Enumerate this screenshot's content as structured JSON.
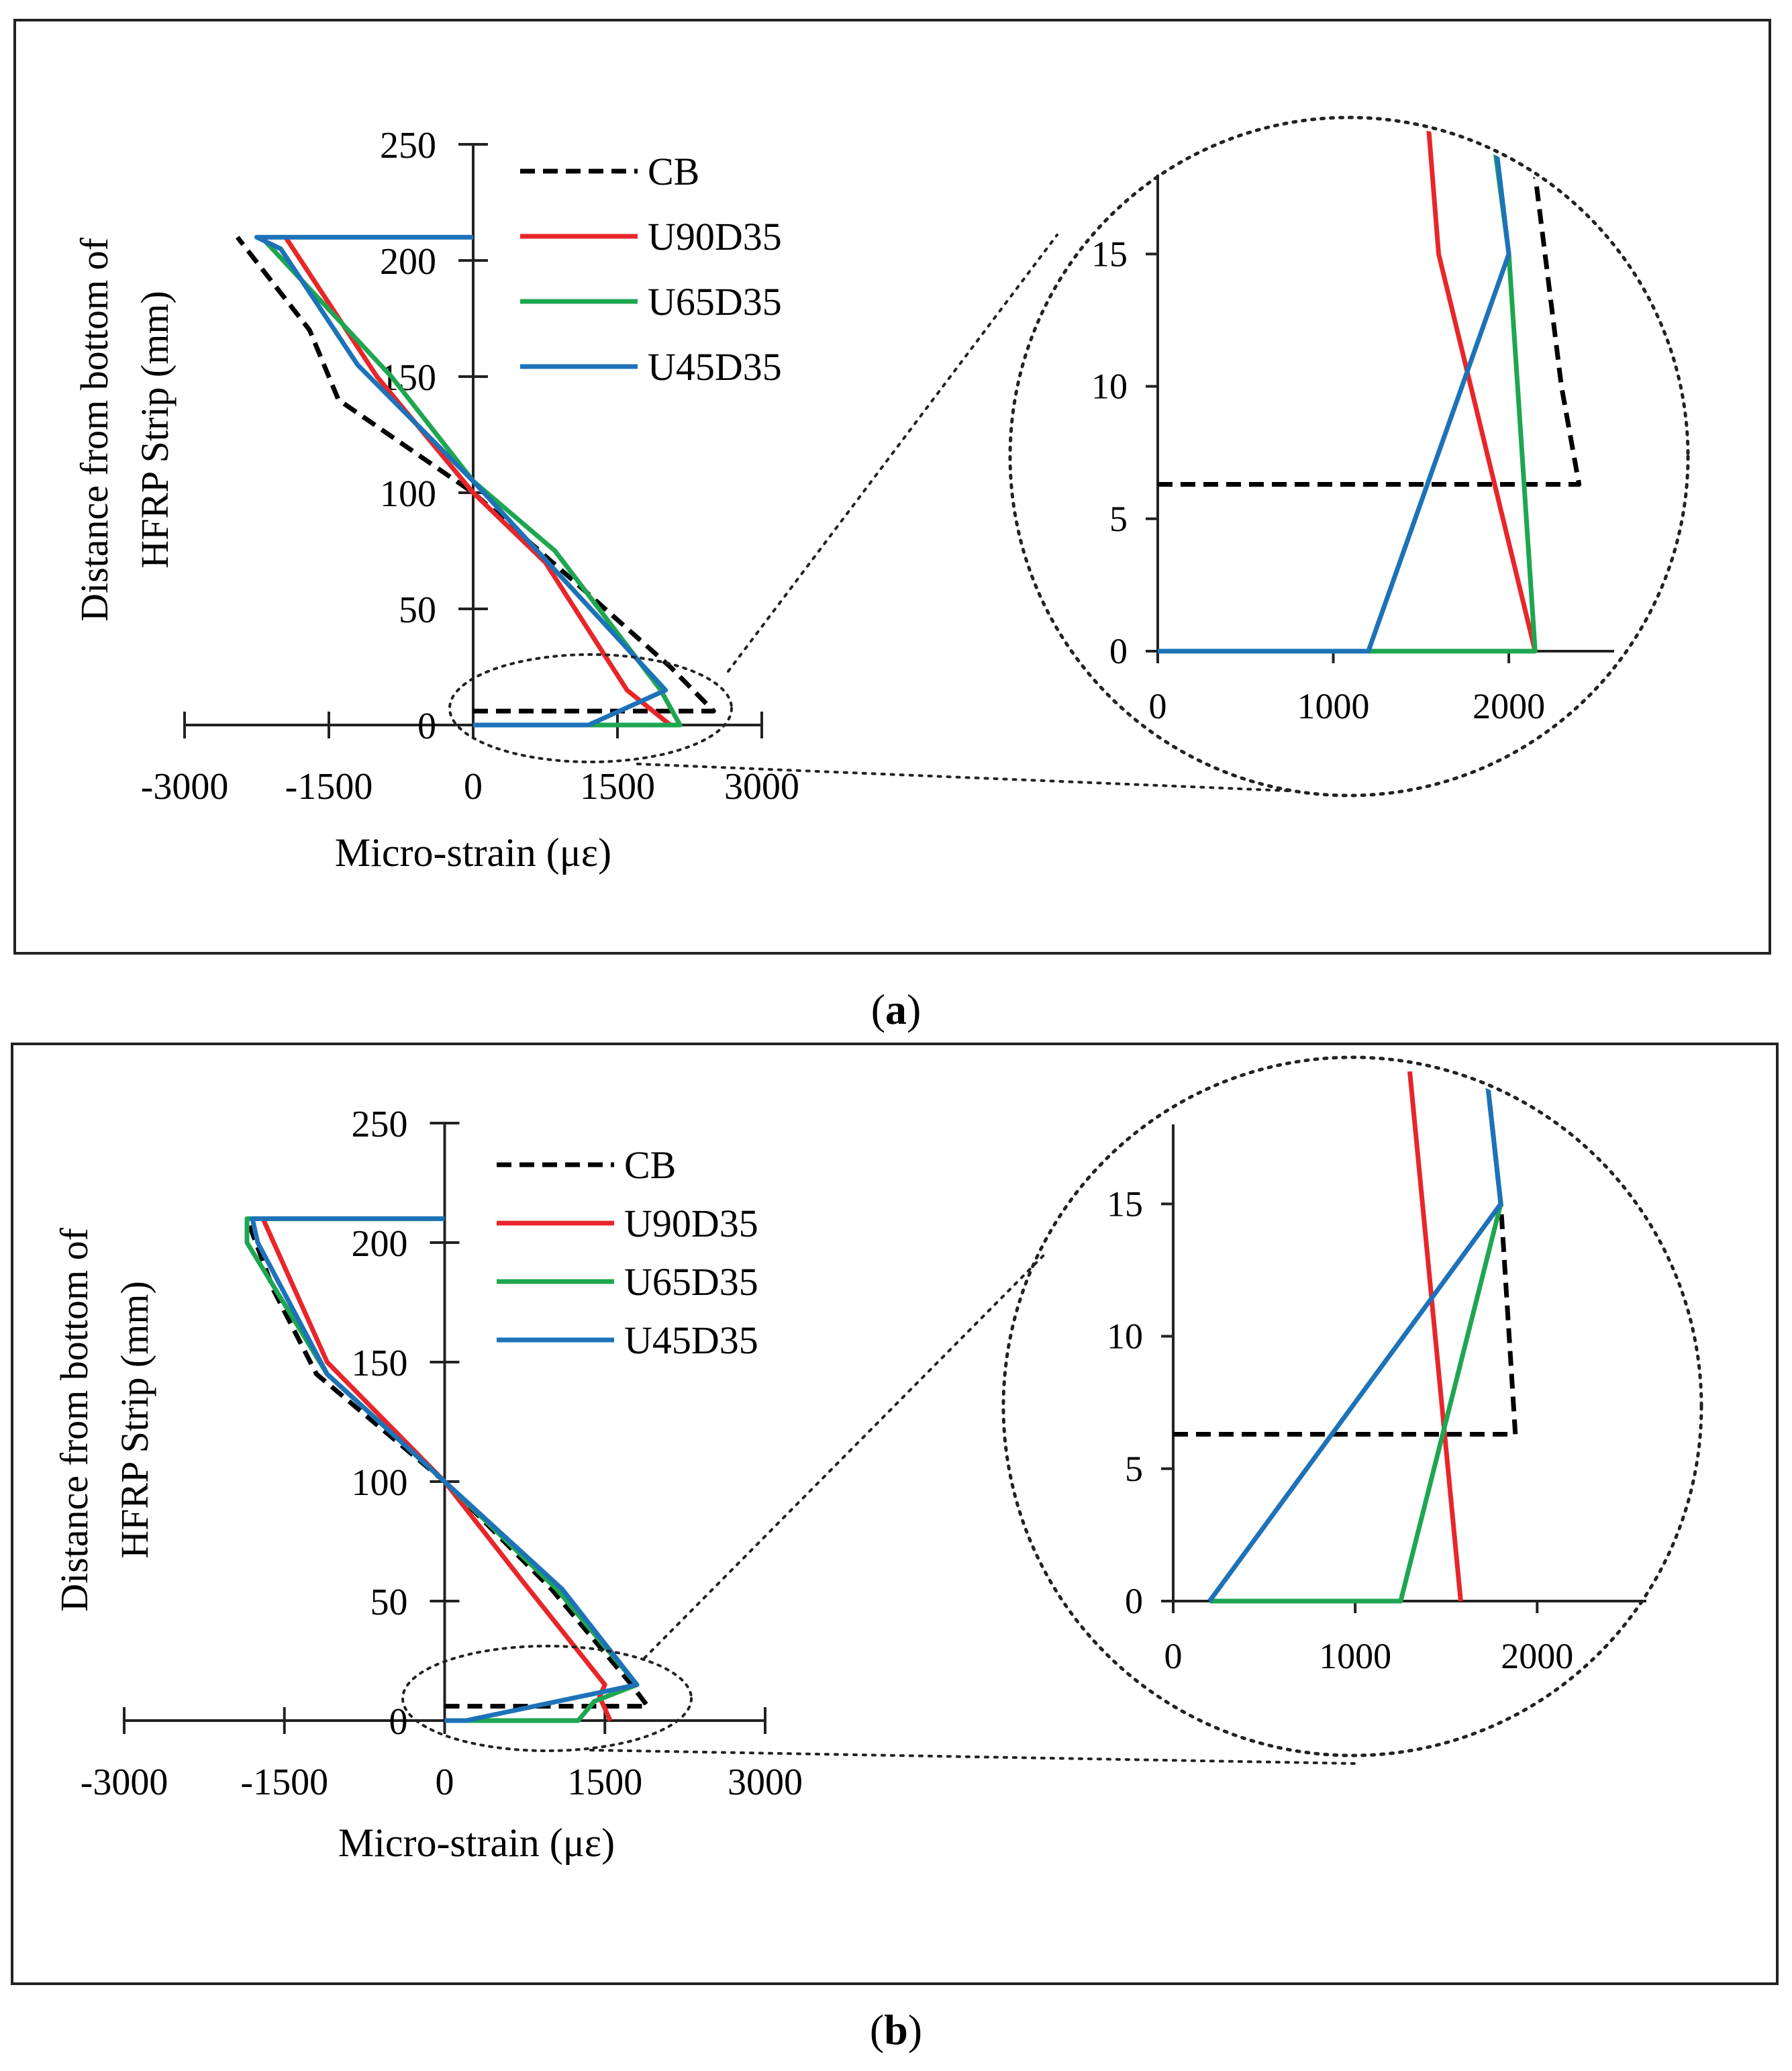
{
  "panels": [
    {
      "caption_letter": "a",
      "chart_data": [
        {
          "type": "line",
          "role": "main",
          "xlabel": "Micro-strain (με)",
          "ylabel_line1": "Distance from bottom of",
          "ylabel_line2": "HFRP Strip (mm)",
          "xlim": [
            -3000,
            3000
          ],
          "ylim": [
            0,
            250
          ],
          "xticks": [
            -3000,
            -1500,
            0,
            1500,
            3000
          ],
          "yticks": [
            0,
            50,
            100,
            150,
            200,
            250
          ],
          "legend": "top-right",
          "series": [
            {
              "name": "CB",
              "color": "#000000",
              "dash": true,
              "points": [
                [
                  0,
                  6
                ],
                [
                  2500,
                  6
                ],
                [
                  2050,
                  25
                ],
                [
                  1100,
                  60
                ],
                [
                  0,
                  100
                ],
                [
                  -1400,
                  140
                ],
                [
                  -1700,
                  170
                ],
                [
                  -2450,
                  210
                ]
              ]
            },
            {
              "name": "U90D35",
              "color": "#e8262a",
              "dash": false,
              "points": [
                [
                  2050,
                  0
                ],
                [
                  1600,
                  15
                ],
                [
                  750,
                  70
                ],
                [
                  0,
                  100
                ],
                [
                  -1000,
                  150
                ],
                [
                  -1950,
                  210
                ]
              ]
            },
            {
              "name": "U65D35",
              "color": "#1ea650",
              "dash": false,
              "points": [
                [
                  1200,
                  0
                ],
                [
                  2150,
                  0
                ],
                [
                  1950,
                  15
                ],
                [
                  850,
                  75
                ],
                [
                  0,
                  105
                ],
                [
                  -850,
                  150
                ],
                [
                  -2200,
                  210
                ]
              ]
            },
            {
              "name": "U45D35",
              "color": "#1d72b8",
              "dash": false,
              "points": [
                [
                  0,
                  0
                ],
                [
                  1200,
                  0
                ],
                [
                  2000,
                  15
                ],
                [
                  1000,
                  60
                ],
                [
                  0,
                  105
                ],
                [
                  -1200,
                  155
                ],
                [
                  -2000,
                  205
                ],
                [
                  -2250,
                  210
                ],
                [
                  0,
                  210
                ]
              ]
            }
          ]
        },
        {
          "type": "line",
          "role": "zoom-inset",
          "xlim": [
            0,
            2600
          ],
          "ylim": [
            0,
            18
          ],
          "xticks": [
            0,
            1000,
            2000
          ],
          "yticks": [
            0,
            5,
            10,
            15
          ],
          "series": [
            {
              "name": "CB",
              "color": "#000000",
              "dash": true,
              "points": [
                [
                  0,
                  6.3
                ],
                [
                  2400,
                  6.3
                ],
                [
                  2300,
                  10
                ],
                [
                  2150,
                  18
                ]
              ]
            },
            {
              "name": "U90D35",
              "color": "#e8262a",
              "dash": false,
              "points": [
                [
                  2150,
                  0
                ],
                [
                  1600,
                  15
                ],
                [
                  1540,
                  20
                ]
              ]
            },
            {
              "name": "U65D35",
              "color": "#1ea650",
              "dash": false,
              "points": [
                [
                  1200,
                  0
                ],
                [
                  2150,
                  0
                ],
                [
                  2000,
                  15
                ],
                [
                  1900,
                  20
                ]
              ]
            },
            {
              "name": "U45D35",
              "color": "#1d72b8",
              "dash": false,
              "points": [
                [
                  0,
                  0
                ],
                [
                  1200,
                  0
                ],
                [
                  2000,
                  15
                ],
                [
                  1910,
                  20
                ]
              ]
            }
          ]
        }
      ]
    },
    {
      "caption_letter": "b",
      "chart_data": [
        {
          "type": "line",
          "role": "main",
          "xlabel": "Micro-strain (με)",
          "ylabel_line1": "Distance from bottom of",
          "ylabel_line2": "HFRP Strip (mm)",
          "xlim": [
            -3000,
            3000
          ],
          "ylim": [
            0,
            250
          ],
          "xticks": [
            -3000,
            -1500,
            0,
            1500,
            3000
          ],
          "yticks": [
            0,
            50,
            100,
            150,
            200,
            250
          ],
          "legend": "top-right",
          "series": [
            {
              "name": "CB",
              "color": "#000000",
              "dash": true,
              "points": [
                [
                  0,
                  6
                ],
                [
                  1900,
                  6
                ],
                [
                  1750,
                  15
                ],
                [
                  1000,
                  55
                ],
                [
                  0,
                  100
                ],
                [
                  -1200,
                  145
                ],
                [
                  -1600,
                  180
                ],
                [
                  -1850,
                  210
                ]
              ]
            },
            {
              "name": "U90D35",
              "color": "#e8262a",
              "dash": false,
              "points": [
                [
                  1550,
                  0
                ],
                [
                  1450,
                  10
                ],
                [
                  1500,
                  15
                ],
                [
                  700,
                  60
                ],
                [
                  0,
                  100
                ],
                [
                  -1100,
                  150
                ],
                [
                  -1700,
                  210
                ]
              ]
            },
            {
              "name": "U65D35",
              "color": "#1ea650",
              "dash": false,
              "points": [
                [
                  0,
                  0
                ],
                [
                  1250,
                  0
                ],
                [
                  1400,
                  8
                ],
                [
                  1800,
                  15
                ],
                [
                  1050,
                  55
                ],
                [
                  0,
                  100
                ],
                [
                  -1100,
                  145
                ],
                [
                  -1850,
                  200
                ],
                [
                  -1850,
                  210
                ],
                [
                  0,
                  210
                ]
              ]
            },
            {
              "name": "U45D35",
              "color": "#1d72b8",
              "dash": false,
              "points": [
                [
                  0,
                  0
                ],
                [
                  200,
                  0
                ],
                [
                  1800,
                  15
                ],
                [
                  1100,
                  55
                ],
                [
                  0,
                  100
                ],
                [
                  -1100,
                  145
                ],
                [
                  -1750,
                  200
                ],
                [
                  -1800,
                  210
                ],
                [
                  0,
                  210
                ]
              ]
            }
          ]
        },
        {
          "type": "line",
          "role": "zoom-inset",
          "xlim": [
            0,
            2600
          ],
          "ylim": [
            0,
            18
          ],
          "xticks": [
            0,
            1000,
            2000
          ],
          "yticks": [
            0,
            5,
            10,
            15
          ],
          "series": [
            {
              "name": "CB",
              "color": "#000000",
              "dash": true,
              "points": [
                [
                  0,
                  6.3
                ],
                [
                  1880,
                  6.3
                ],
                [
                  1800,
                  15
                ],
                [
                  1720,
                  20
                ]
              ]
            },
            {
              "name": "U90D35",
              "color": "#e8262a",
              "dash": false,
              "points": [
                [
                  1580,
                  0
                ],
                [
                  1300,
                  20
                ]
              ]
            },
            {
              "name": "U65D35",
              "color": "#1ea650",
              "dash": false,
              "points": [
                [
                  200,
                  0
                ],
                [
                  1250,
                  0
                ],
                [
                  1800,
                  15
                ],
                [
                  1720,
                  20
                ]
              ]
            },
            {
              "name": "U45D35",
              "color": "#1d72b8",
              "dash": false,
              "points": [
                [
                  200,
                  0
                ],
                [
                  1800,
                  15
                ],
                [
                  1720,
                  20
                ]
              ]
            }
          ]
        }
      ]
    }
  ]
}
